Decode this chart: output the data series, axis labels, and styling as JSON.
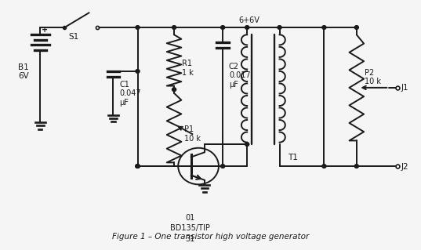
{
  "title": "Figure 1 – One transistor high voltage generator",
  "bg_color": "#f5f5f5",
  "line_color": "#1a1a1a",
  "lw": 1.4,
  "labels": {
    "B1": "B1\n6V",
    "S1": "S1",
    "C1": "C1\n0.047\nμF",
    "R1": "R1\n1 k",
    "P1": "P1\n10 k",
    "C2": "C2\n0.017\nμF",
    "T1_label": "T1",
    "transformer_label": "6+6V",
    "P2": "P2\n10 k",
    "Q1": "01\nBD135/TIP\n31",
    "J1": "J1",
    "J2": "J2"
  }
}
